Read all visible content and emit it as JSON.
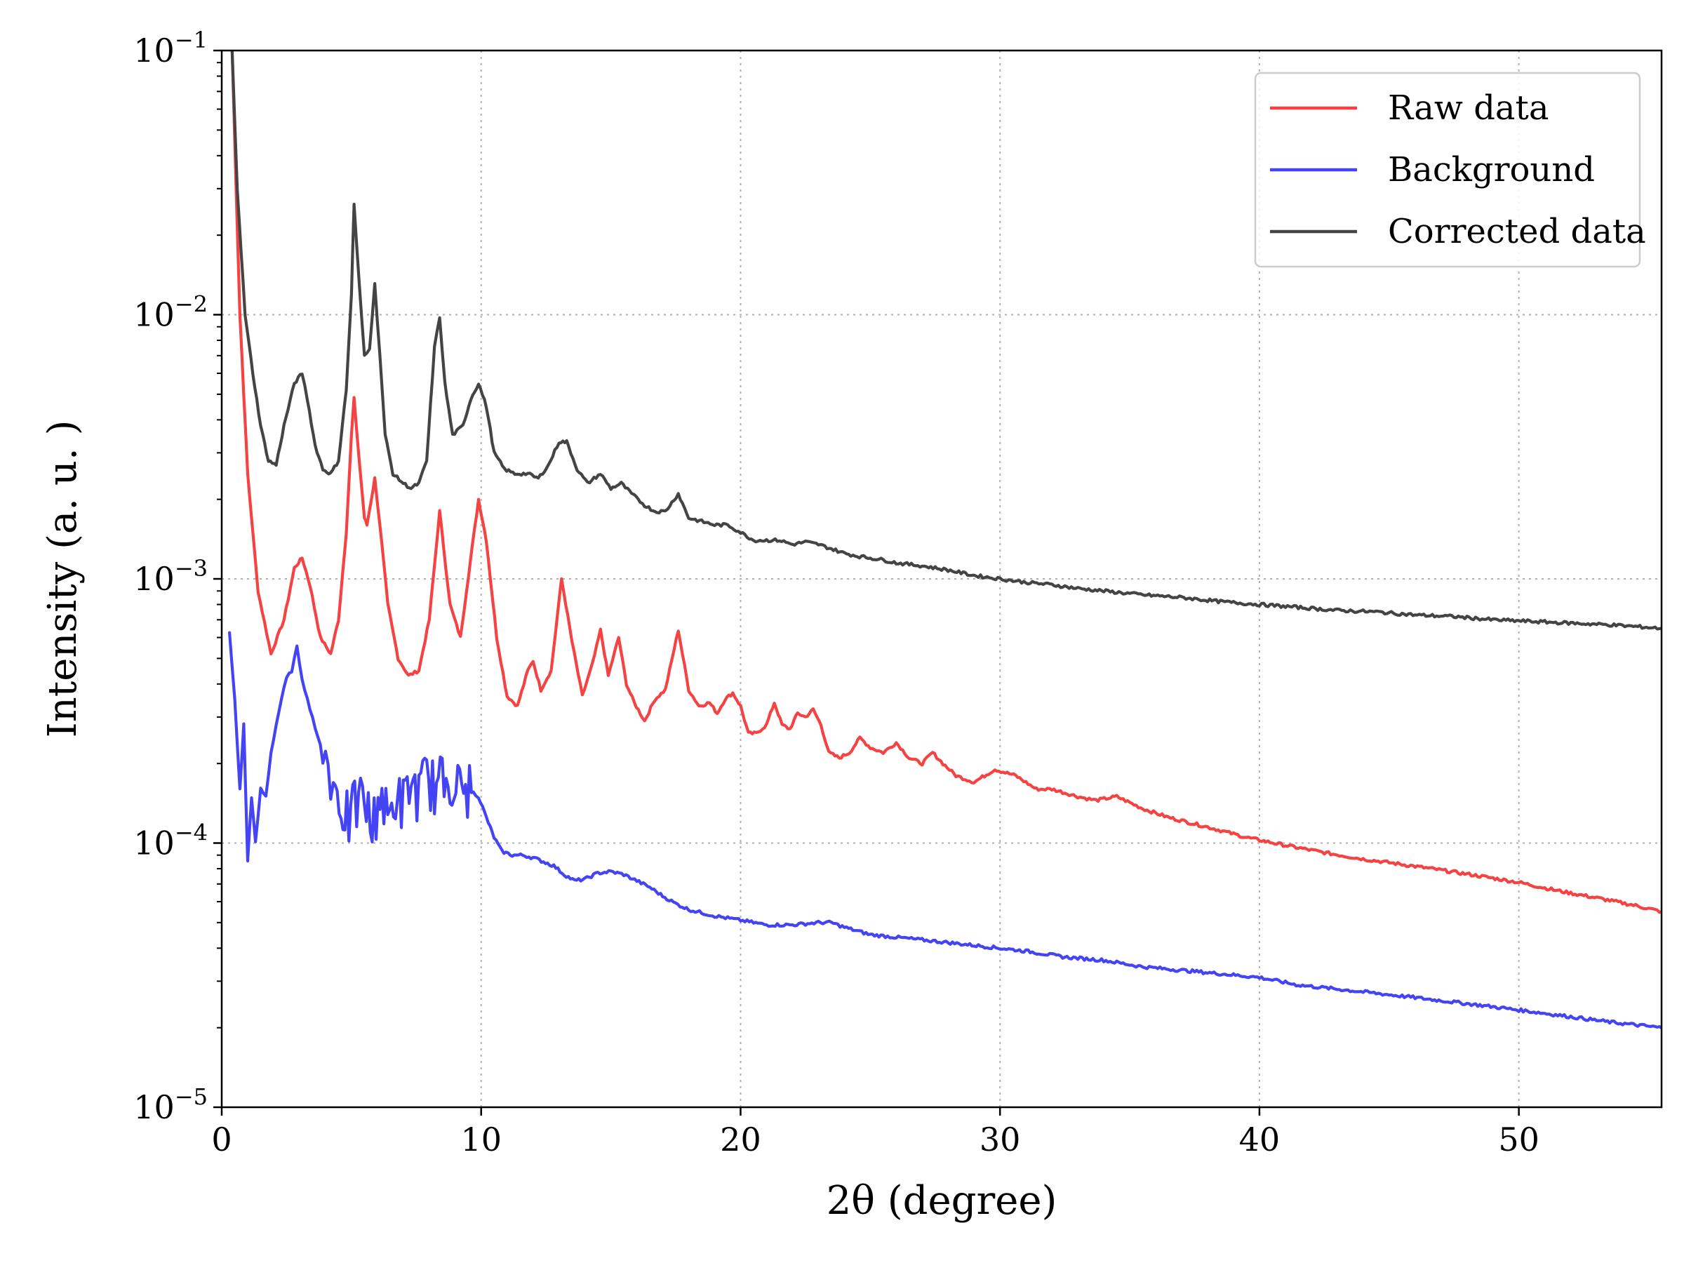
{
  "chart_data": {
    "type": "line",
    "title": "",
    "xlabel": "2θ (degree)",
    "ylabel": "Intensity (a. u. )",
    "x_scale": "linear",
    "y_scale": "log",
    "xlim": [
      0,
      55.5
    ],
    "ylim": [
      1e-05,
      0.1
    ],
    "x_ticks": [
      0,
      10,
      20,
      30,
      40,
      50
    ],
    "x_tick_labels": [
      "0",
      "10",
      "20",
      "30",
      "40",
      "50"
    ],
    "y_ticks": [
      1e-05,
      0.0001,
      0.001,
      0.01,
      0.1
    ],
    "y_tick_labels": [
      {
        "base": "10",
        "exp": "−5"
      },
      {
        "base": "10",
        "exp": "−4"
      },
      {
        "base": "10",
        "exp": "−3"
      },
      {
        "base": "10",
        "exp": "−2"
      },
      {
        "base": "10",
        "exp": "−1"
      }
    ],
    "grid": true,
    "legend_position": "top-right",
    "series": [
      {
        "name": "Raw data",
        "color": "#f54242",
        "x": [
          0.4,
          0.7,
          1.0,
          1.4,
          1.9,
          2.4,
          2.8,
          3.1,
          3.4,
          3.8,
          4.2,
          4.5,
          4.8,
          5.0,
          5.1,
          5.3,
          5.5,
          5.6,
          5.9,
          6.1,
          6.4,
          6.8,
          7.2,
          7.6,
          8.0,
          8.4,
          8.8,
          9.2,
          9.6,
          9.9,
          10.2,
          10.6,
          11.0,
          11.4,
          11.8,
          12.0,
          12.3,
          12.7,
          13.1,
          13.5,
          13.9,
          14.3,
          14.6,
          14.9,
          15.3,
          15.6,
          15.9,
          16.3,
          16.7,
          17.1,
          17.6,
          18.0,
          18.4,
          18.8,
          19.1,
          19.4,
          19.7,
          20.0,
          20.3,
          20.6,
          21.0,
          21.3,
          21.6,
          21.9,
          22.2,
          22.5,
          22.8,
          23.1,
          23.4,
          23.8,
          24.2,
          24.6,
          25.0,
          25.5,
          26.0,
          26.5,
          27.0,
          27.4,
          27.8,
          28.3,
          29.0,
          29.8,
          30.6,
          31.4,
          32.0,
          33.0,
          33.7,
          34.5,
          35.5,
          36.5,
          38.0,
          39.5,
          41.0,
          42.5,
          44.0,
          45.5,
          47.0,
          48.5,
          50.0,
          51.5,
          53.0,
          54.5,
          55.5
        ],
        "y": [
          0.1,
          0.01,
          0.0025,
          0.0009,
          0.00052,
          0.0007,
          0.0011,
          0.0012,
          0.00095,
          0.0006,
          0.00052,
          0.0007,
          0.0015,
          0.0035,
          0.0048,
          0.0028,
          0.0017,
          0.0016,
          0.0024,
          0.0016,
          0.0008,
          0.0005,
          0.00043,
          0.00045,
          0.0007,
          0.0018,
          0.0008,
          0.0006,
          0.0012,
          0.002,
          0.0014,
          0.0006,
          0.00036,
          0.00033,
          0.00045,
          0.00049,
          0.00038,
          0.00045,
          0.001,
          0.00058,
          0.00036,
          0.00048,
          0.00064,
          0.00043,
          0.0006,
          0.0004,
          0.00034,
          0.00029,
          0.00035,
          0.00038,
          0.00064,
          0.00038,
          0.00033,
          0.00034,
          0.00031,
          0.00035,
          0.00037,
          0.00033,
          0.00026,
          0.00026,
          0.00028,
          0.00034,
          0.00028,
          0.00027,
          0.00031,
          0.0003,
          0.00032,
          0.00028,
          0.00022,
          0.00021,
          0.00022,
          0.00025,
          0.00023,
          0.00022,
          0.00024,
          0.00021,
          0.0002,
          0.00022,
          0.0002,
          0.00018,
          0.00017,
          0.00019,
          0.00018,
          0.00016,
          0.00016,
          0.00015,
          0.000145,
          0.00015,
          0.000135,
          0.000125,
          0.000115,
          0.000105,
          9.8e-05,
          9.2e-05,
          8.7e-05,
          8.3e-05,
          7.9e-05,
          7.5e-05,
          7.1e-05,
          6.6e-05,
          6.2e-05,
          5.8e-05,
          5.5e-05
        ]
      },
      {
        "name": "Background",
        "color": "#4444f5",
        "x": [
          0.3,
          0.5,
          0.7,
          0.85,
          1.0,
          1.15,
          1.3,
          1.5,
          1.7,
          1.9,
          2.1,
          2.3,
          2.5,
          2.7,
          2.9,
          3.1,
          3.3,
          3.5,
          3.7,
          3.9,
          4.1,
          4.3,
          4.6,
          4.9,
          5.2,
          5.5,
          5.8,
          6.1,
          6.4,
          6.7,
          7.0,
          7.3,
          7.6,
          7.9,
          8.2,
          8.5,
          8.8,
          9.1,
          9.4,
          9.7,
          9.9,
          10.2,
          10.5,
          10.8,
          11.2,
          11.6,
          12.0,
          12.4,
          12.8,
          13.2,
          13.6,
          14.0,
          14.5,
          15.0,
          15.5,
          16.0,
          16.5,
          17.0,
          17.5,
          18.0,
          19.0,
          20.0,
          21.0,
          22.0,
          23.0,
          23.5,
          24.0,
          25.0,
          26.0,
          27.0,
          28.0,
          29.0,
          30.0,
          31.0,
          32.5,
          34.0,
          35.5,
          37.0,
          38.5,
          40.0,
          41.5,
          43.0,
          44.5,
          46.0,
          47.5,
          49.0,
          50.5,
          52.0,
          53.5,
          55.5
        ],
        "y": [
          0.00062,
          0.00035,
          0.00016,
          0.00028,
          8.5e-05,
          0.00015,
          0.0001,
          0.00016,
          0.00015,
          0.00022,
          0.00028,
          0.00035,
          0.00042,
          0.00045,
          0.00055,
          0.00042,
          0.00035,
          0.0003,
          0.00025,
          0.00022,
          0.0002,
          0.00017,
          0.00014,
          0.00012,
          0.00014,
          0.00015,
          0.00011,
          0.00016,
          0.00012,
          0.00015,
          0.00014,
          0.00017,
          0.00015,
          0.00018,
          0.00016,
          0.00017,
          0.00018,
          0.00016,
          0.00016,
          0.000155,
          0.00015,
          0.000125,
          0.000105,
          9.3e-05,
          9e-05,
          9e-05,
          8.8e-05,
          8.5e-05,
          8.2e-05,
          7.6e-05,
          7.2e-05,
          7.3e-05,
          7.7e-05,
          7.8e-05,
          7.6e-05,
          7.2e-05,
          6.8e-05,
          6.3e-05,
          5.9e-05,
          5.6e-05,
          5.3e-05,
          5.1e-05,
          4.9e-05,
          4.9e-05,
          5e-05,
          5e-05,
          4.8e-05,
          4.5e-05,
          4.4e-05,
          4.3e-05,
          4.2e-05,
          4.1e-05,
          4e-05,
          3.9e-05,
          3.7e-05,
          3.6e-05,
          3.4e-05,
          3.3e-05,
          3.2e-05,
          3.1e-05,
          2.9e-05,
          2.8e-05,
          2.7e-05,
          2.6e-05,
          2.5e-05,
          2.4e-05,
          2.3e-05,
          2.2e-05,
          2.1e-05,
          2e-05
        ]
      },
      {
        "name": "Corrected data",
        "color": "#444444",
        "x": [
          0.4,
          0.6,
          0.9,
          1.2,
          1.5,
          1.8,
          2.1,
          2.4,
          2.8,
          3.1,
          3.3,
          3.6,
          3.9,
          4.2,
          4.5,
          4.8,
          5.0,
          5.1,
          5.3,
          5.5,
          5.7,
          5.9,
          6.1,
          6.3,
          6.6,
          7.0,
          7.3,
          7.6,
          7.9,
          8.2,
          8.4,
          8.6,
          8.9,
          9.3,
          9.6,
          9.9,
          10.2,
          10.5,
          10.9,
          11.3,
          11.8,
          12.2,
          12.6,
          13.0,
          13.3,
          13.7,
          14.1,
          14.6,
          15.0,
          15.4,
          15.8,
          16.3,
          16.7,
          17.1,
          17.6,
          18.0,
          18.5,
          19.0,
          19.5,
          20.0,
          20.5,
          21.0,
          21.5,
          22.0,
          22.5,
          23.0,
          23.5,
          24.0,
          24.5,
          25.0,
          25.5,
          26.0,
          27.0,
          28.0,
          29.0,
          30.0,
          31.0,
          32.0,
          33.0,
          34.0,
          35.5,
          37.0,
          38.5,
          40.0,
          41.5,
          43.0,
          44.5,
          46.0,
          47.5,
          49.0,
          50.5,
          52.0,
          53.5,
          55.5
        ],
        "y": [
          0.1,
          0.03,
          0.01,
          0.006,
          0.0038,
          0.0028,
          0.0027,
          0.0038,
          0.0055,
          0.006,
          0.0048,
          0.0032,
          0.0026,
          0.0025,
          0.0028,
          0.0052,
          0.012,
          0.026,
          0.013,
          0.007,
          0.0075,
          0.013,
          0.007,
          0.0035,
          0.0025,
          0.0023,
          0.0022,
          0.0023,
          0.0028,
          0.0075,
          0.0098,
          0.0055,
          0.0035,
          0.0038,
          0.0048,
          0.0055,
          0.0045,
          0.003,
          0.0026,
          0.0025,
          0.0025,
          0.0024,
          0.0027,
          0.0033,
          0.0033,
          0.0026,
          0.0023,
          0.0025,
          0.0022,
          0.0023,
          0.0021,
          0.0019,
          0.0018,
          0.0018,
          0.0021,
          0.0017,
          0.00165,
          0.0016,
          0.0016,
          0.0015,
          0.0014,
          0.0014,
          0.0014,
          0.00135,
          0.00138,
          0.00135,
          0.0013,
          0.00125,
          0.00122,
          0.0012,
          0.00118,
          0.00115,
          0.00112,
          0.00108,
          0.00103,
          0.001,
          0.00097,
          0.00095,
          0.00092,
          0.0009,
          0.00087,
          0.00085,
          0.00082,
          0.0008,
          0.00078,
          0.00076,
          0.00075,
          0.00073,
          0.00072,
          0.0007,
          0.00069,
          0.00068,
          0.00067,
          0.00065
        ]
      }
    ]
  }
}
